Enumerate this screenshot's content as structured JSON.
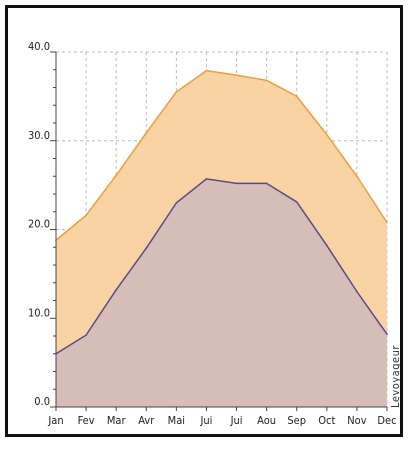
{
  "chart_data": {
    "type": "area",
    "categories": [
      "Jan",
      "Fev",
      "Mar",
      "Avr",
      "Mai",
      "Jui",
      "Jui",
      "Aou",
      "Sep",
      "Oct",
      "Nov",
      "Dec"
    ],
    "series": [
      {
        "values": [
          18.8,
          21.6,
          26.1,
          30.9,
          35.5,
          37.9,
          37.4,
          36.8,
          35.0,
          30.7,
          26.0,
          20.8
        ],
        "color": "#e8a040",
        "fill": "#f9d3a3"
      },
      {
        "values": [
          6.0,
          8.1,
          13.2,
          17.9,
          23.0,
          25.7,
          25.2,
          25.2,
          23.1,
          18.2,
          13.0,
          8.2
        ],
        "color": "#5a4a8a",
        "fill": "#d7bdb8"
      }
    ],
    "y_ticks": [
      "0.0",
      "10.0",
      "20.0",
      "30.0",
      "40.0"
    ],
    "ylim": [
      0,
      40
    ],
    "grid": true,
    "watermark": "Levoyageur"
  }
}
